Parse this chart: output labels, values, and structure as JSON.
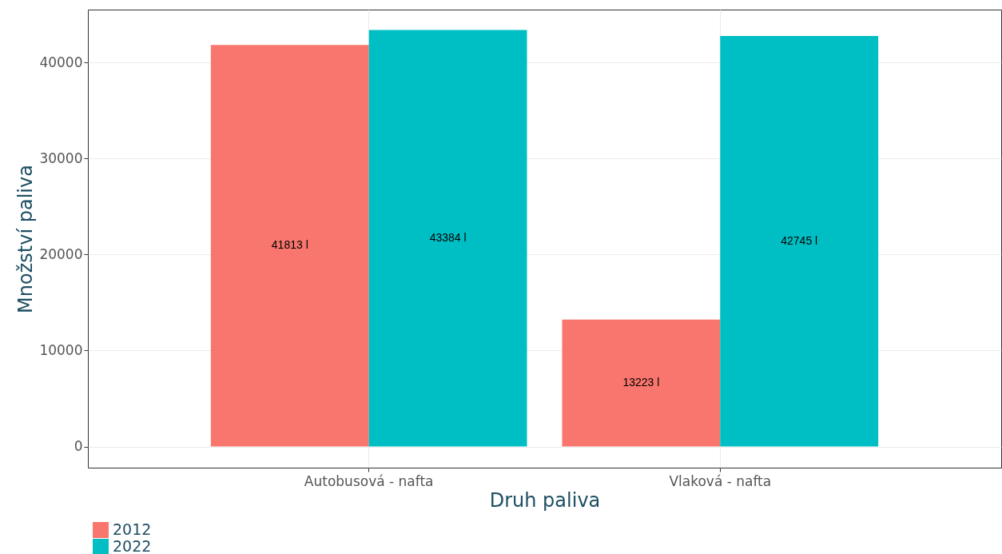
{
  "chart_data": {
    "type": "bar",
    "xlabel": "Druh paliva",
    "ylabel": "Množství paliva",
    "categories": [
      "Autobusová - nafta",
      "Vlaková - nafta"
    ],
    "series": [
      {
        "name": "2012",
        "color": "#f8766d",
        "values": [
          41813,
          13223
        ],
        "value_labels": [
          "41813 l",
          "13223 l"
        ]
      },
      {
        "name": "2022",
        "color": "#00bfc4",
        "values": [
          43384,
          42745
        ],
        "value_labels": [
          "43384 l",
          "42745 l"
        ]
      }
    ],
    "ylim": [
      -2200,
      45500
    ],
    "yticks": [
      0,
      10000,
      20000,
      30000,
      40000
    ],
    "grid": true,
    "legend": "bottom left"
  }
}
